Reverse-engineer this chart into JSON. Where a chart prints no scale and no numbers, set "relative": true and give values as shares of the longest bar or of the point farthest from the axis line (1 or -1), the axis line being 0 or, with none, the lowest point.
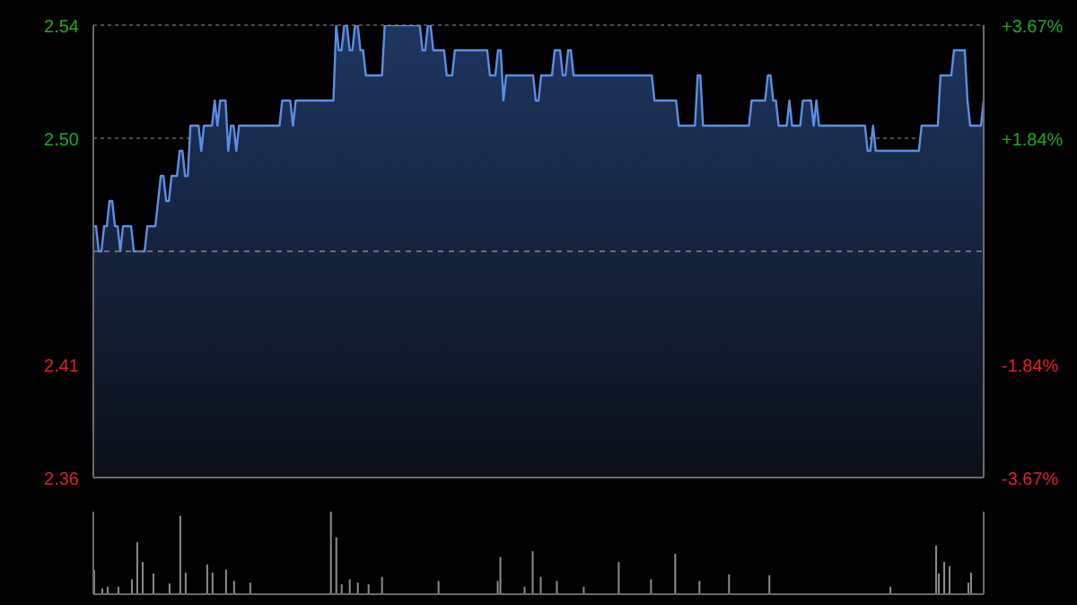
{
  "chart_data": [
    {
      "type": "area",
      "color": "#5a8ee6",
      "marker": "none",
      "grid": "y",
      "categories": [
        null,
        null,
        null,
        null,
        null,
        null,
        null,
        null,
        null,
        null,
        null,
        null,
        null,
        null,
        null,
        null,
        null,
        null,
        null,
        null,
        null,
        null,
        null,
        null,
        null,
        null,
        null,
        null,
        null,
        null,
        null,
        null,
        null,
        null,
        null,
        null,
        null,
        null,
        null,
        null,
        null,
        null,
        null,
        null,
        null,
        null,
        null,
        null,
        null,
        null,
        null,
        null,
        null,
        null,
        null,
        null,
        null,
        null,
        null,
        null,
        null,
        null,
        null,
        null,
        null,
        null,
        null,
        null,
        null,
        null,
        null,
        null,
        null,
        null,
        null,
        null,
        null,
        null,
        null,
        null,
        null,
        null,
        null,
        null,
        null,
        null,
        null,
        null,
        null,
        null,
        null,
        null,
        null,
        null,
        null,
        null,
        null,
        null,
        null,
        null,
        null,
        null,
        null,
        null,
        null,
        null,
        null,
        null,
        null,
        null,
        null,
        null,
        null,
        null,
        null,
        null,
        null,
        null,
        null,
        null,
        null,
        null,
        null,
        null,
        null,
        null,
        null,
        null,
        null,
        null,
        null,
        null,
        null,
        null,
        null,
        null,
        null,
        null,
        null,
        null,
        null,
        null,
        null,
        null,
        null,
        null,
        null,
        null,
        null,
        null,
        null,
        null,
        null,
        null,
        null,
        null,
        null,
        null,
        null,
        null,
        null,
        null,
        null,
        null,
        null,
        null,
        null,
        null,
        null,
        null,
        null,
        null,
        null,
        null,
        null,
        null,
        null,
        null,
        null,
        null,
        null,
        null,
        null,
        null,
        null,
        null,
        null,
        null,
        null,
        null,
        null,
        null,
        null,
        null,
        null,
        null,
        null,
        null,
        null,
        null,
        null,
        null,
        null,
        null,
        null,
        null,
        null,
        null,
        null,
        null,
        null,
        null,
        null,
        null,
        null,
        null,
        null,
        null,
        null,
        null,
        null,
        null,
        null,
        null,
        null,
        null,
        null,
        null,
        null,
        null,
        null,
        null,
        null,
        null,
        null,
        null,
        null,
        null,
        null,
        null,
        null,
        null,
        null,
        null,
        null,
        null,
        null,
        null,
        null,
        null,
        null,
        null,
        null,
        null,
        null,
        null,
        null,
        null,
        null,
        null,
        null,
        null,
        null,
        null,
        null,
        null,
        null,
        null,
        null,
        null,
        null,
        null,
        null,
        null,
        null,
        null,
        null,
        null,
        null,
        null,
        null,
        null,
        null,
        null,
        null,
        null,
        null,
        null,
        null,
        null,
        null,
        null,
        null,
        null,
        null,
        null,
        null,
        null,
        null,
        null,
        null,
        null,
        null,
        null,
        null,
        null,
        null,
        null,
        null,
        null,
        null,
        null,
        null,
        null,
        null,
        null,
        null,
        null,
        null,
        null,
        null,
        null,
        null,
        null,
        null,
        null,
        null,
        null,
        null,
        null,
        null
      ],
      "values": [
        2.46,
        2.46,
        2.45,
        2.45,
        2.46,
        2.46,
        2.47,
        2.47,
        2.46,
        2.46,
        2.45,
        2.46,
        2.46,
        2.46,
        2.46,
        2.45,
        2.45,
        2.45,
        2.45,
        2.45,
        2.46,
        2.46,
        2.46,
        2.46,
        2.47,
        2.48,
        2.48,
        2.47,
        2.47,
        2.48,
        2.48,
        2.48,
        2.49,
        2.49,
        2.48,
        2.48,
        2.5,
        2.5,
        2.5,
        2.5,
        2.49,
        2.5,
        2.5,
        2.5,
        2.5,
        2.51,
        2.5,
        2.51,
        2.51,
        2.51,
        2.49,
        2.5,
        2.5,
        2.49,
        2.5,
        2.5,
        2.5,
        2.5,
        2.5,
        2.5,
        2.5,
        2.5,
        2.5,
        2.5,
        2.5,
        2.5,
        2.5,
        2.5,
        2.5,
        2.5,
        2.51,
        2.51,
        2.51,
        2.51,
        2.5,
        2.51,
        2.51,
        2.51,
        2.51,
        2.51,
        2.51,
        2.51,
        2.51,
        2.51,
        2.51,
        2.51,
        2.51,
        2.51,
        2.51,
        2.51,
        2.54,
        2.53,
        2.53,
        2.54,
        2.54,
        2.53,
        2.53,
        2.54,
        2.54,
        2.53,
        2.53,
        2.52,
        2.52,
        2.52,
        2.52,
        2.52,
        2.52,
        2.52,
        2.54,
        2.54,
        2.54,
        2.54,
        2.54,
        2.54,
        2.54,
        2.54,
        2.54,
        2.54,
        2.54,
        2.54,
        2.54,
        2.54,
        2.53,
        2.53,
        2.54,
        2.54,
        2.53,
        2.53,
        2.53,
        2.53,
        2.53,
        2.52,
        2.52,
        2.52,
        2.53,
        2.53,
        2.53,
        2.53,
        2.53,
        2.53,
        2.53,
        2.53,
        2.53,
        2.53,
        2.53,
        2.53,
        2.53,
        2.52,
        2.52,
        2.52,
        2.53,
        2.53,
        2.51,
        2.52,
        2.52,
        2.52,
        2.52,
        2.52,
        2.52,
        2.52,
        2.52,
        2.52,
        2.52,
        2.52,
        2.51,
        2.51,
        2.52,
        2.52,
        2.52,
        2.52,
        2.52,
        2.53,
        2.53,
        2.53,
        2.52,
        2.52,
        2.53,
        2.53,
        2.52,
        2.52,
        2.52,
        2.52,
        2.52,
        2.52,
        2.52,
        2.52,
        2.52,
        2.52,
        2.52,
        2.52,
        2.52,
        2.52,
        2.52,
        2.52,
        2.52,
        2.52,
        2.52,
        2.52,
        2.52,
        2.52,
        2.52,
        2.52,
        2.52,
        2.52,
        2.52,
        2.52,
        2.52,
        2.52,
        2.51,
        2.51,
        2.51,
        2.51,
        2.51,
        2.51,
        2.51,
        2.51,
        2.51,
        2.5,
        2.5,
        2.5,
        2.5,
        2.5,
        2.5,
        2.5,
        2.52,
        2.52,
        2.5,
        2.5,
        2.5,
        2.5,
        2.5,
        2.5,
        2.5,
        2.5,
        2.5,
        2.5,
        2.5,
        2.5,
        2.5,
        2.5,
        2.5,
        2.5,
        2.5,
        2.5,
        2.51,
        2.51,
        2.51,
        2.51,
        2.51,
        2.51,
        2.52,
        2.52,
        2.51,
        2.51,
        2.5,
        2.5,
        2.5,
        2.5,
        2.51,
        2.5,
        2.5,
        2.5,
        2.5,
        2.51,
        2.51,
        2.51,
        2.51,
        2.5,
        2.51,
        2.5,
        2.5,
        2.5,
        2.5,
        2.5,
        2.5,
        2.5,
        2.5,
        2.5,
        2.5,
        2.5,
        2.5,
        2.5,
        2.5,
        2.5,
        2.5,
        2.5,
        2.5,
        2.49,
        2.49,
        2.5,
        2.49,
        2.49,
        2.49,
        2.49,
        2.49,
        2.49,
        2.49,
        2.49,
        2.49,
        2.49,
        2.49,
        2.49,
        2.49,
        2.49,
        2.49,
        2.49,
        2.49,
        2.5,
        2.5,
        2.5,
        2.5,
        2.5,
        2.5,
        2.5,
        2.52,
        2.52,
        2.52,
        2.52,
        2.52,
        2.53,
        2.53,
        2.53,
        2.53,
        2.53,
        2.51,
        2.5,
        2.5,
        2.5,
        2.5,
        2.5,
        2.51
      ],
      "ylim": [
        2.36,
        2.54
      ],
      "yticks": [
        2.36,
        {
          "value": 2.405,
          "label": "2.41"
        },
        {
          "value": 2.495,
          "label": "2.50"
        },
        2.54
      ],
      "y2lim": [
        -3.67,
        3.67
      ],
      "y2ticks": [
        {
          "value": -3.67,
          "label": "-3.67%"
        },
        {
          "value": -1.84,
          "label": "-1.84%"
        },
        {
          "value": 1.84,
          "label": "+1.84%"
        },
        {
          "value": 3.67,
          "label": "+3.67%"
        }
      ],
      "ref_lines": [
        {
          "axis": "y",
          "value": 2.45,
          "color": "#707070",
          "line_style": "dashed"
        }
      ]
    },
    {
      "type": "bar",
      "relative": true,
      "color": "#8c8c8c",
      "categories": [
        null,
        null,
        null,
        null,
        null,
        null,
        null,
        null,
        null,
        null,
        null,
        null,
        null,
        null,
        null,
        null,
        null,
        null,
        null,
        null,
        null,
        null,
        null,
        null,
        null,
        null,
        null,
        null,
        null,
        null,
        null,
        null,
        null,
        null,
        null,
        null,
        null,
        null,
        null,
        null,
        null,
        null,
        null,
        null,
        null,
        null,
        null,
        null,
        null,
        null,
        null,
        null,
        null,
        null,
        null,
        null,
        null,
        null,
        null,
        null,
        null,
        null,
        null,
        null,
        null,
        null,
        null,
        null,
        null,
        null,
        null,
        null,
        null,
        null,
        null,
        null,
        null,
        null,
        null,
        null,
        null,
        null,
        null,
        null,
        null,
        null,
        null,
        null,
        null,
        null,
        null,
        null,
        null,
        null,
        null,
        null,
        null,
        null,
        null,
        null,
        null,
        null,
        null,
        null,
        null,
        null,
        null,
        null,
        null,
        null,
        null,
        null,
        null,
        null,
        null,
        null,
        null,
        null,
        null,
        null,
        null,
        null,
        null,
        null,
        null,
        null,
        null,
        null,
        null,
        null,
        null,
        null,
        null,
        null,
        null,
        null,
        null,
        null,
        null,
        null,
        null,
        null,
        null,
        null,
        null,
        null,
        null,
        null,
        null,
        null,
        null,
        null,
        null,
        null,
        null,
        null,
        null,
        null,
        null,
        null,
        null,
        null,
        null,
        null,
        null,
        null,
        null,
        null,
        null,
        null,
        null,
        null,
        null,
        null,
        null,
        null,
        null,
        null,
        null,
        null,
        null,
        null,
        null,
        null,
        null,
        null,
        null,
        null,
        null,
        null,
        null,
        null,
        null,
        null,
        null,
        null,
        null,
        null,
        null,
        null,
        null,
        null,
        null,
        null,
        null,
        null,
        null,
        null,
        null,
        null,
        null,
        null,
        null,
        null,
        null,
        null,
        null,
        null,
        null,
        null,
        null,
        null,
        null,
        null,
        null,
        null,
        null,
        null,
        null,
        null,
        null,
        null,
        null,
        null,
        null,
        null,
        null,
        null,
        null,
        null,
        null,
        null,
        null,
        null,
        null,
        null,
        null,
        null,
        null,
        null,
        null,
        null,
        null,
        null,
        null,
        null,
        null,
        null,
        null,
        null,
        null,
        null,
        null,
        null,
        null,
        null,
        null,
        null,
        null,
        null,
        null,
        null,
        null,
        null,
        null,
        null,
        null,
        null,
        null,
        null,
        null,
        null,
        null,
        null,
        null,
        null,
        null,
        null,
        null,
        null,
        null,
        null,
        null,
        null,
        null,
        null,
        null,
        null,
        null,
        null,
        null,
        null,
        null,
        null,
        null,
        null,
        null,
        null,
        null,
        null,
        null,
        null,
        null,
        null,
        null,
        null,
        null,
        null,
        null,
        null,
        null,
        null,
        null,
        null,
        null,
        null,
        null,
        null,
        null,
        null,
        null
      ],
      "values": [
        0.29,
        0,
        0,
        0.07,
        0,
        0.09,
        0,
        0,
        0,
        0.09,
        0,
        0,
        0,
        0,
        0.18,
        0,
        0.63,
        0,
        0.39,
        0,
        0,
        0,
        0.25,
        0,
        0,
        0,
        0,
        0,
        0.13,
        0,
        0,
        0,
        0.95,
        0,
        0.26,
        0,
        0,
        0,
        0,
        0,
        0,
        0,
        0.36,
        0,
        0.26,
        0,
        0,
        0,
        0,
        0.3,
        0,
        0,
        0.16,
        0,
        0,
        0,
        0,
        0,
        0.14,
        0,
        0,
        0,
        0,
        0,
        0,
        0,
        0,
        0,
        0,
        0,
        0,
        0,
        0,
        0,
        0,
        0,
        0,
        0,
        0,
        0,
        0,
        0,
        0,
        0,
        0,
        0,
        0,
        0,
        1,
        0,
        0.69,
        0,
        0.12,
        0,
        0,
        0.18,
        0,
        0,
        0.14,
        0,
        0,
        0,
        0.12,
        0,
        0,
        0,
        0,
        0.21,
        0,
        0,
        0,
        0,
        0,
        0,
        0,
        0,
        0,
        0,
        0,
        0,
        0,
        0,
        0,
        0,
        0,
        0,
        0,
        0,
        0.16,
        0,
        0,
        0,
        0,
        0,
        0,
        0,
        0,
        0,
        0,
        0,
        0,
        0,
        0,
        0,
        0,
        0,
        0,
        0,
        0,
        0,
        0.16,
        0.45,
        0,
        0,
        0,
        0,
        0,
        0,
        0,
        0,
        0.09,
        0,
        0,
        0.52,
        0,
        0,
        0.21,
        0,
        0,
        0,
        0,
        0,
        0.16,
        0,
        0,
        0,
        0,
        0,
        0,
        0,
        0,
        0,
        0.09,
        0,
        0,
        0,
        0,
        0,
        0,
        0,
        0,
        0,
        0,
        0,
        0,
        0.39,
        0,
        0,
        0,
        0,
        0,
        0,
        0,
        0,
        0,
        0,
        0,
        0.18,
        0,
        0,
        0,
        0,
        0,
        0,
        0,
        0,
        0.49,
        0,
        0,
        0,
        0,
        0,
        0,
        0,
        0,
        0.16,
        0,
        0,
        0,
        0,
        0,
        0,
        0,
        0,
        0,
        0,
        0.24,
        0,
        0,
        0,
        0,
        0,
        0,
        0,
        0,
        0,
        0,
        0,
        0,
        0,
        0,
        0.23,
        0,
        0,
        0,
        0,
        0,
        0,
        0,
        0,
        0,
        0,
        0,
        0,
        0,
        0,
        0,
        0,
        0,
        0,
        0,
        0,
        0,
        0,
        0,
        0,
        0,
        0,
        0,
        0,
        0,
        0,
        0,
        0,
        0,
        0,
        0,
        0,
        0,
        0,
        0,
        0,
        0,
        0,
        0,
        0,
        0.09,
        0,
        0,
        0,
        0,
        0,
        0,
        0,
        0,
        0,
        0,
        0,
        0,
        0,
        0,
        0,
        0,
        0.59,
        0.25,
        0,
        0.39,
        0,
        0.34,
        0,
        0,
        0,
        0,
        0,
        0,
        0.14,
        0.26,
        0,
        0,
        0,
        0
      ]
    }
  ]
}
